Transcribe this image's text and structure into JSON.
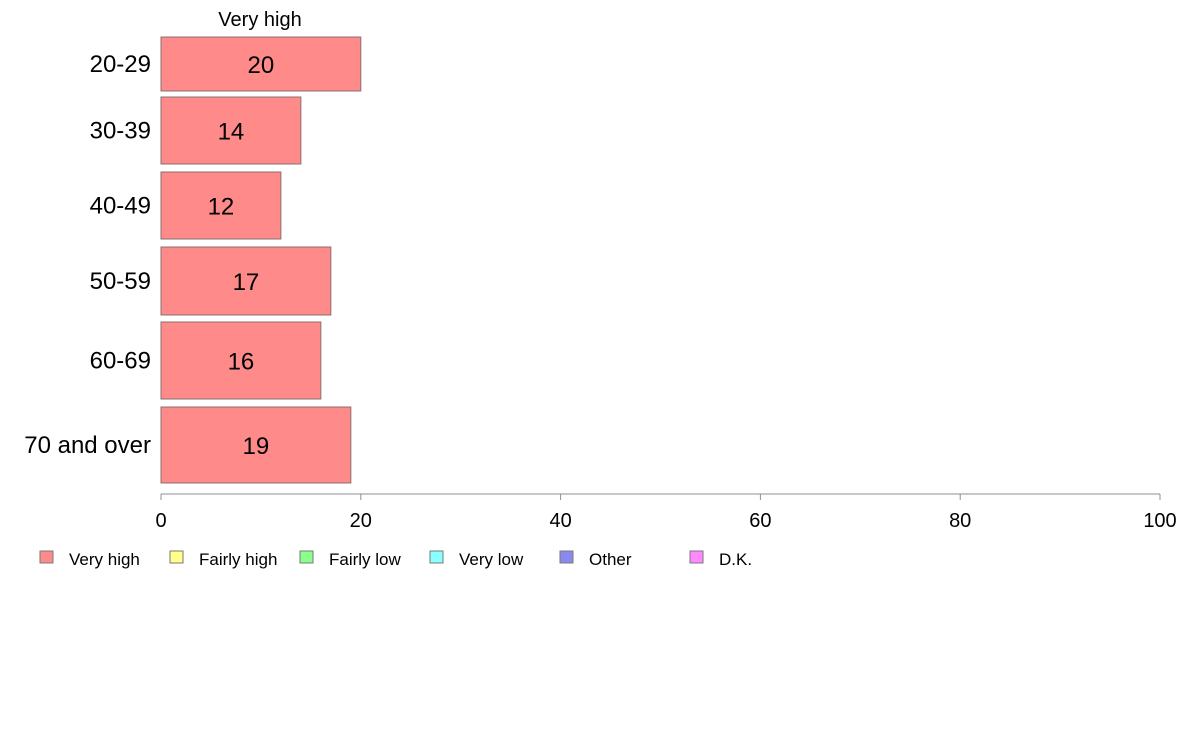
{
  "chart_data": {
    "type": "bar",
    "orientation": "horizontal",
    "stacked": true,
    "title": "",
    "xlabel": "",
    "ylabel": "",
    "xlim": [
      0,
      100
    ],
    "x_ticks": [
      "0",
      "20",
      "40",
      "60",
      "80",
      "100"
    ],
    "grid": false,
    "categories": [
      "20-29",
      "30-39",
      "40-49",
      "50-59",
      "60-69",
      "70 and over"
    ],
    "series": [
      {
        "name": "Very high",
        "color": "#ff8a8a",
        "values": [
          20,
          14,
          12,
          17,
          16,
          19
        ]
      }
    ],
    "segment_header": "Very high",
    "legend": {
      "placement": "bottom-left",
      "items": [
        {
          "label": "Very high",
          "color": "#ff8a8a"
        },
        {
          "label": "Fairly high",
          "color": "#ffff8a"
        },
        {
          "label": "Fairly low",
          "color": "#8aff8a"
        },
        {
          "label": "Very low",
          "color": "#8affff"
        },
        {
          "label": "Other",
          "color": "#8a8aee"
        },
        {
          "label": "D.K.",
          "color": "#ff8aff"
        }
      ]
    }
  }
}
